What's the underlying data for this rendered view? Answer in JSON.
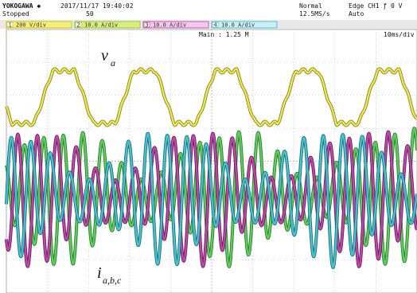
{
  "header": {
    "brand": "YOKOGAWA ◆",
    "datetime": "2017/11/17 19:40:02",
    "status": "Stopped",
    "count": "50",
    "mode": "Normal",
    "sample_rate": "12.5MS/s",
    "trigger": "Edge CH1 ƒ 0 V",
    "trigger_mode": "Auto"
  },
  "channels": [
    {
      "number": "1",
      "scale": "200 V/div"
    },
    {
      "number": "2",
      "scale": "10.0 A/div"
    },
    {
      "number": "3",
      "scale": "10.0 A/div"
    },
    {
      "number": "4",
      "scale": "10.0 A/div"
    }
  ],
  "plot": {
    "record": "Main : 1.25 M",
    "timebase": "10ms/div"
  },
  "annotations": {
    "voltage": "v",
    "voltage_sub": "a",
    "current": "i",
    "current_sub": "a,b,c"
  }
}
